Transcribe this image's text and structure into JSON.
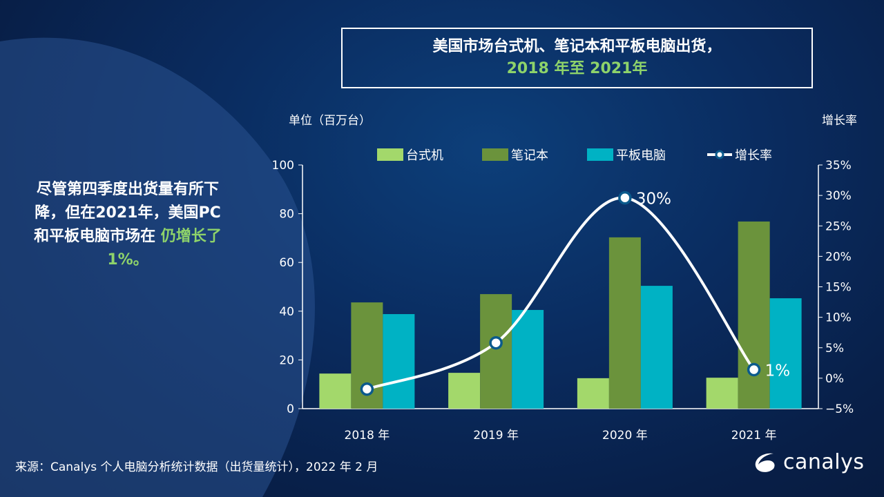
{
  "title": {
    "line1": "美国市场台式机、笔记本和平板电脑出货，",
    "line2": "2018 年至 2021年"
  },
  "side_text": {
    "main": "尽管第四季度出货量有所下降，但在2021年，美国PC和平板电脑市场在 ",
    "highlight": "仍增长了 1%。"
  },
  "source": "来源：Canalys 个人电脑分析统计数据（出货量统计），2022 年 2 月",
  "logo": "canalys",
  "chart_data": {
    "type": "bar",
    "ylabel": "单位（百万台）",
    "y2label": "增长率",
    "categories": [
      "2018 年",
      "2019 年",
      "2020 年",
      "2021 年"
    ],
    "ylim": [
      0,
      100
    ],
    "yticks": [
      0,
      20,
      40,
      60,
      80,
      100
    ],
    "y2lim": [
      -5,
      35
    ],
    "y2ticks": [
      "-5%",
      "0%",
      "5%",
      "10%",
      "15%",
      "20%",
      "25%",
      "30%",
      "35%"
    ],
    "legend_position": "top",
    "series": [
      {
        "name": "台式机",
        "type": "bar",
        "color": "#a3d86b",
        "values": [
          14.4,
          14.7,
          12.5,
          12.7
        ]
      },
      {
        "name": "笔记本",
        "type": "bar",
        "color": "#6b933c",
        "values": [
          43.6,
          47.0,
          70.3,
          76.8
        ]
      },
      {
        "name": "平板电脑",
        "type": "bar",
        "color": "#00b2c4",
        "values": [
          38.8,
          40.5,
          50.4,
          45.3
        ]
      },
      {
        "name": "增长率",
        "type": "line",
        "axis": "right",
        "color": "#ffffff",
        "values": [
          -1.8,
          5.8,
          29.6,
          1.4
        ]
      }
    ],
    "data_labels": [
      {
        "index": 2,
        "text": "30%"
      },
      {
        "index": 3,
        "text": "1%"
      }
    ]
  }
}
